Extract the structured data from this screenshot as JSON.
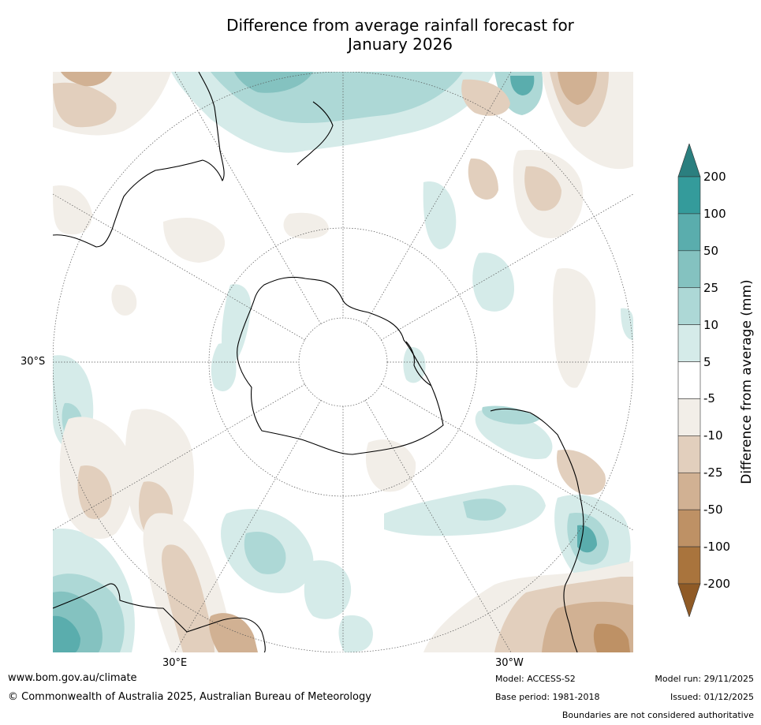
{
  "title_line1": "Difference from average rainfall forecast for",
  "title_line2": "January 2026",
  "map_labels": {
    "lat": "30°S",
    "lon_east": "30°E",
    "lon_west": "30°W"
  },
  "colorbar": {
    "label": "Difference from average (mm)",
    "ticks": [
      "200",
      "100",
      "50",
      "25",
      "10",
      "5",
      "-5",
      "-10",
      "-25",
      "-50",
      "-100",
      "-200"
    ],
    "colors": [
      "#2b7f7f",
      "#349b9b",
      "#5aadad",
      "#84c2c0",
      "#add8d6",
      "#d5ebe9",
      "#ffffff",
      "#f2eee8",
      "#e2cfbd",
      "#d1b193",
      "#be9165",
      "#a9743d",
      "#8f5a26"
    ]
  },
  "footer": {
    "website": "www.bom.gov.au/climate",
    "copyright": "© Commonwealth of Australia 2025, Australian Bureau of Meteorology",
    "model": "Model: ACCESS-S2",
    "base_period": "Base period: 1981-2018",
    "model_run": "Model run: 29/11/2025",
    "issued": "Issued: 01/12/2025",
    "disclaimer": "Boundaries are not considered authoritative"
  }
}
